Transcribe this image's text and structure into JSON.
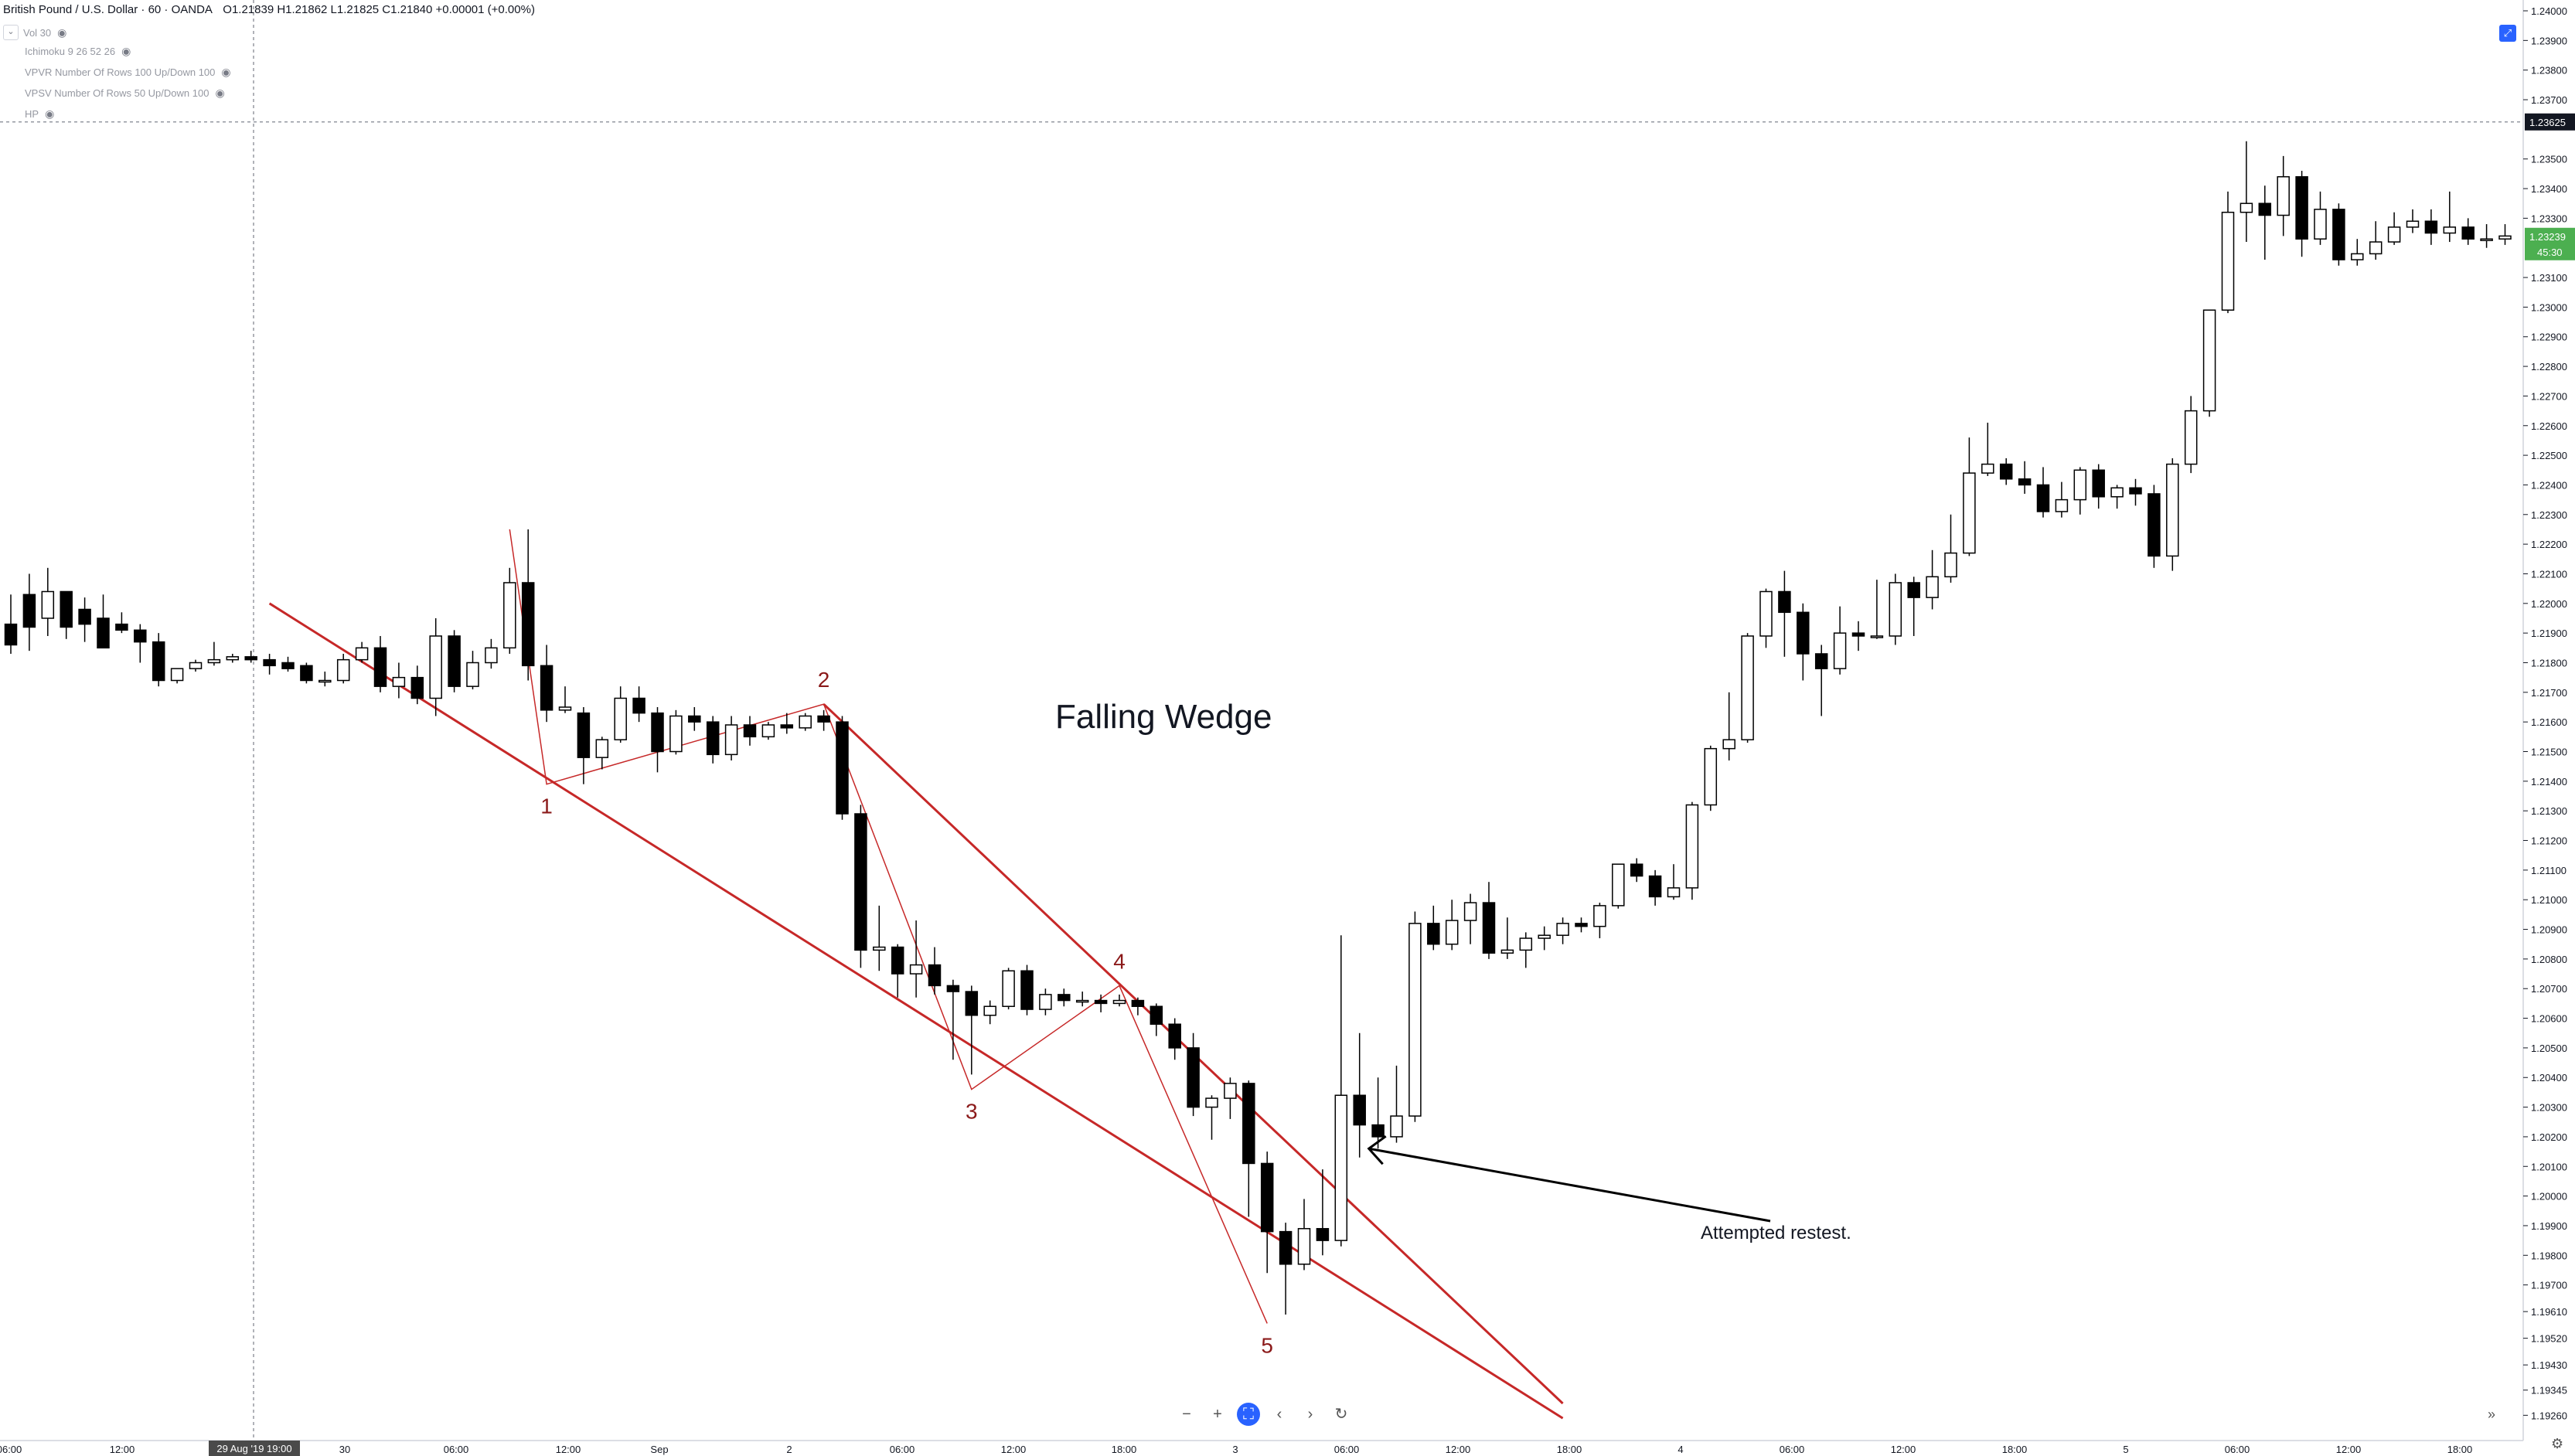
{
  "header": {
    "symbol": "British Pound / U.S. Dollar · 60 · OANDA",
    "ohlc": "O1.21839 H1.21862 L1.21825 C1.21840 +0.00001 (+0.00%)"
  },
  "indicators": [
    {
      "label": "Vol 30"
    },
    {
      "label": "Ichimoku 9 26 52 26"
    },
    {
      "label": "VPVR Number Of Rows 100 Up/Down 100"
    },
    {
      "label": "VPSV Number Of Rows 50 Up/Down 100"
    },
    {
      "label": "HP"
    }
  ],
  "icons": {
    "eye": "eye-icon",
    "zoom_out": "minus-icon",
    "zoom_in": "plus-icon",
    "reset": "fit-icon",
    "scroll_left": "chevron-left-icon",
    "scroll_right": "chevron-right-icon",
    "refresh": "reset-icon",
    "go_latest": "double-chevron-right-icon",
    "settings": "gear-icon"
  },
  "colors": {
    "up_candle": "#ffffff",
    "down_candle": "#000000",
    "wedge_line": "#c62828",
    "pattern_label": "#8b1a1a",
    "price_tag": "#4caf50",
    "crosshair_tag": "#131722",
    "date_tag": "#4a4a4a",
    "axis_text": "#131722"
  },
  "chart_data": {
    "type": "candlestick",
    "title": "Falling Wedge",
    "symbol": "GBP/USD",
    "timeframe": "60",
    "ylim": [
      1.1918,
      1.24
    ],
    "y_ticks": [
      "1.24000",
      "1.23900",
      "1.23800",
      "1.23700",
      "1.23500",
      "1.23400",
      "1.23300",
      "1.23100",
      "1.23000",
      "1.22900",
      "1.22800",
      "1.22700",
      "1.22600",
      "1.22500",
      "1.22400",
      "1.22300",
      "1.22200",
      "1.22100",
      "1.22000",
      "1.21900",
      "1.21800",
      "1.21700",
      "1.21600",
      "1.21500",
      "1.21400",
      "1.21300",
      "1.21200",
      "1.21100",
      "1.21000",
      "1.20900",
      "1.20800",
      "1.20700",
      "1.20600",
      "1.20500",
      "1.20400",
      "1.20300",
      "1.20200",
      "1.20100",
      "1.20000",
      "1.19900",
      "1.19800",
      "1.19700",
      "1.19610",
      "1.19520",
      "1.19430",
      "1.19345",
      "1.19260"
    ],
    "x_ticks": [
      "06:00",
      "12:00",
      "30",
      "06:00",
      "12:00",
      "Sep",
      "2",
      "06:00",
      "12:00",
      "18:00",
      "3",
      "06:00",
      "12:00",
      "18:00",
      "4",
      "06:00",
      "12:00",
      "18:00",
      "5",
      "06:00",
      "12:00",
      "18:00"
    ],
    "crosshair_price": "1.23625",
    "crosshair_time": "29 Aug '19  19:00",
    "last_price": "1.23239",
    "countdown": "45:30",
    "candles": [
      [
        1.2193,
        1.2203,
        1.2186,
        1.2183
      ],
      [
        1.2203,
        1.221,
        1.2192,
        1.2184
      ],
      [
        1.2195,
        1.2212,
        1.2204,
        1.2189
      ],
      [
        1.2204,
        1.2198,
        1.2192,
        1.2188
      ],
      [
        1.2198,
        1.2202,
        1.2193,
        1.2187
      ],
      [
        1.2195,
        1.2203,
        1.2185,
        1.2185
      ],
      [
        1.2193,
        1.2197,
        1.2191,
        1.219
      ],
      [
        1.2191,
        1.2193,
        1.2187,
        1.218
      ],
      [
        1.2187,
        1.219,
        1.2174,
        1.2172
      ],
      [
        1.2174,
        1.2176,
        1.2178,
        1.2173
      ],
      [
        1.2178,
        1.2181,
        1.218,
        1.2177
      ],
      [
        1.218,
        1.2187,
        1.2181,
        1.2179
      ],
      [
        1.2181,
        1.2183,
        1.2182,
        1.218
      ],
      [
        1.2182,
        1.2184,
        1.2181,
        1.218
      ],
      [
        1.2181,
        1.2183,
        1.2179,
        1.2176
      ],
      [
        1.218,
        1.2182,
        1.2178,
        1.2177
      ],
      [
        1.2179,
        1.218,
        1.2174,
        1.2173
      ],
      [
        1.2174,
        1.2177,
        1.2174,
        1.2172
      ],
      [
        1.2174,
        1.2183,
        1.2181,
        1.2173
      ],
      [
        1.2181,
        1.2187,
        1.2185,
        1.218
      ],
      [
        1.2185,
        1.2189,
        1.2172,
        1.217
      ],
      [
        1.2172,
        1.218,
        1.2175,
        1.2168
      ],
      [
        1.2175,
        1.2179,
        1.2168,
        1.2166
      ],
      [
        1.2168,
        1.2195,
        1.2189,
        1.2162
      ],
      [
        1.2189,
        1.2191,
        1.2172,
        1.217
      ],
      [
        1.2172,
        1.2184,
        1.218,
        1.2171
      ],
      [
        1.218,
        1.2188,
        1.2185,
        1.2178
      ],
      [
        1.2185,
        1.2212,
        1.2207,
        1.2183
      ],
      [
        1.2207,
        1.2225,
        1.2179,
        1.2174
      ],
      [
        1.2179,
        1.2186,
        1.2164,
        1.216
      ],
      [
        1.2164,
        1.2172,
        1.2165,
        1.2163
      ],
      [
        1.2163,
        1.2165,
        1.2148,
        1.2139
      ],
      [
        1.2148,
        1.2155,
        1.2154,
        1.2144
      ],
      [
        1.2154,
        1.2172,
        1.2168,
        1.2153
      ],
      [
        1.2168,
        1.2172,
        1.2163,
        1.216
      ],
      [
        1.2163,
        1.2165,
        1.215,
        1.2143
      ],
      [
        1.215,
        1.2164,
        1.2162,
        1.2149
      ],
      [
        1.2162,
        1.2165,
        1.216,
        1.2157
      ],
      [
        1.216,
        1.2162,
        1.2149,
        1.2146
      ],
      [
        1.2149,
        1.2162,
        1.2159,
        1.2147
      ],
      [
        1.2159,
        1.2162,
        1.2155,
        1.2152
      ],
      [
        1.2155,
        1.216,
        1.2159,
        1.2154
      ],
      [
        1.2159,
        1.2163,
        1.2158,
        1.2156
      ],
      [
        1.2158,
        1.2163,
        1.2162,
        1.2157
      ],
      [
        1.2162,
        1.2164,
        1.216,
        1.2157
      ],
      [
        1.216,
        1.2162,
        1.2129,
        1.2127
      ],
      [
        1.2129,
        1.2132,
        1.2083,
        1.2077
      ],
      [
        1.2083,
        1.2098,
        1.2084,
        1.2076
      ],
      [
        1.2084,
        1.2085,
        1.2075,
        1.2067
      ],
      [
        1.2075,
        1.2093,
        1.2078,
        1.2067
      ],
      [
        1.2078,
        1.2084,
        1.2071,
        1.2068
      ],
      [
        1.2071,
        1.2073,
        1.2069,
        1.2046
      ],
      [
        1.2069,
        1.2071,
        1.2061,
        1.2041
      ],
      [
        1.2061,
        1.2066,
        1.2064,
        1.2058
      ],
      [
        1.2064,
        1.2077,
        1.2076,
        1.2063
      ],
      [
        1.2076,
        1.2078,
        1.2063,
        1.2061
      ],
      [
        1.2063,
        1.207,
        1.2068,
        1.2061
      ],
      [
        1.2068,
        1.207,
        1.2066,
        1.2064
      ],
      [
        1.2066,
        1.2069,
        1.2066,
        1.2064
      ],
      [
        1.2066,
        1.2068,
        1.2065,
        1.2062
      ],
      [
        1.2065,
        1.2068,
        1.2066,
        1.2064
      ],
      [
        1.2066,
        1.2067,
        1.2064,
        1.2061
      ],
      [
        1.2064,
        1.2065,
        1.2058,
        1.2054
      ],
      [
        1.2058,
        1.206,
        1.205,
        1.2046
      ],
      [
        1.205,
        1.2055,
        1.203,
        1.2027
      ],
      [
        1.203,
        1.2034,
        1.2033,
        1.2019
      ],
      [
        1.2033,
        1.204,
        1.2038,
        1.2026
      ],
      [
        1.2038,
        1.2039,
        1.2011,
        1.1993
      ],
      [
        1.2011,
        1.2015,
        1.1988,
        1.1974
      ],
      [
        1.1988,
        1.1991,
        1.1977,
        1.196
      ],
      [
        1.1977,
        1.1999,
        1.1989,
        1.1975
      ],
      [
        1.1989,
        1.2009,
        1.1985,
        1.198
      ],
      [
        1.1985,
        1.2088,
        1.2034,
        1.1983
      ],
      [
        1.2034,
        1.2055,
        1.2024,
        1.2013
      ],
      [
        1.2024,
        1.204,
        1.202,
        1.2016
      ],
      [
        1.202,
        1.2044,
        1.2027,
        1.2018
      ],
      [
        1.2027,
        1.2096,
        1.2092,
        1.2025
      ],
      [
        1.2092,
        1.2098,
        1.2085,
        1.2083
      ],
      [
        1.2085,
        1.21,
        1.2093,
        1.2083
      ],
      [
        1.2093,
        1.2102,
        1.2099,
        1.2085
      ],
      [
        1.2099,
        1.2106,
        1.2082,
        1.208
      ],
      [
        1.2082,
        1.2094,
        1.2083,
        1.208
      ],
      [
        1.2083,
        1.2089,
        1.2087,
        1.2077
      ],
      [
        1.2087,
        1.2091,
        1.2088,
        1.2083
      ],
      [
        1.2088,
        1.2094,
        1.2092,
        1.2085
      ],
      [
        1.2092,
        1.2094,
        1.2091,
        1.2089
      ],
      [
        1.2091,
        1.2099,
        1.2098,
        1.2087
      ],
      [
        1.2098,
        1.2112,
        1.2112,
        1.2097
      ],
      [
        1.2112,
        1.2114,
        1.2108,
        1.2106
      ],
      [
        1.2108,
        1.211,
        1.2101,
        1.2098
      ],
      [
        1.2101,
        1.2112,
        1.2104,
        1.21
      ],
      [
        1.2104,
        1.2133,
        1.2132,
        1.21
      ],
      [
        1.2132,
        1.2152,
        1.2151,
        1.213
      ],
      [
        1.2151,
        1.217,
        1.2154,
        1.2147
      ],
      [
        1.2154,
        1.219,
        1.2189,
        1.2153
      ],
      [
        1.2189,
        1.2205,
        1.2204,
        1.2185
      ],
      [
        1.2204,
        1.2211,
        1.2197,
        1.2182
      ],
      [
        1.2197,
        1.22,
        1.2183,
        1.2174
      ],
      [
        1.2183,
        1.2186,
        1.2178,
        1.2162
      ],
      [
        1.2178,
        1.2199,
        1.219,
        1.2176
      ],
      [
        1.219,
        1.2194,
        1.2189,
        1.2184
      ],
      [
        1.2189,
        1.2208,
        1.2189,
        1.2188
      ],
      [
        1.2189,
        1.221,
        1.2207,
        1.2186
      ],
      [
        1.2207,
        1.2209,
        1.2202,
        1.2189
      ],
      [
        1.2202,
        1.2218,
        1.2209,
        1.2198
      ],
      [
        1.2209,
        1.223,
        1.2217,
        1.2207
      ],
      [
        1.2217,
        1.2256,
        1.2244,
        1.2216
      ],
      [
        1.2244,
        1.2261,
        1.2247,
        1.2243
      ],
      [
        1.2247,
        1.2249,
        1.2242,
        1.224
      ],
      [
        1.2242,
        1.2248,
        1.224,
        1.2237
      ],
      [
        1.224,
        1.2246,
        1.2231,
        1.2229
      ],
      [
        1.2231,
        1.2241,
        1.2235,
        1.2229
      ],
      [
        1.2235,
        1.2246,
        1.2245,
        1.223
      ],
      [
        1.2245,
        1.2247,
        1.2236,
        1.2232
      ],
      [
        1.2236,
        1.224,
        1.2239,
        1.2232
      ],
      [
        1.2239,
        1.2242,
        1.2237,
        1.2233
      ],
      [
        1.2237,
        1.224,
        1.2216,
        1.2212
      ],
      [
        1.2216,
        1.2249,
        1.2247,
        1.2211
      ],
      [
        1.2247,
        1.227,
        1.2265,
        1.2244
      ],
      [
        1.2265,
        1.2292,
        1.2299,
        1.2263
      ],
      [
        1.2299,
        1.2339,
        1.2332,
        1.2298
      ],
      [
        1.2332,
        1.2356,
        1.2335,
        1.2322
      ],
      [
        1.2335,
        1.2341,
        1.2331,
        1.2316
      ],
      [
        1.2331,
        1.2351,
        1.2344,
        1.2324
      ],
      [
        1.2344,
        1.2346,
        1.2323,
        1.2317
      ],
      [
        1.2323,
        1.2339,
        1.2333,
        1.2321
      ],
      [
        1.2333,
        1.2335,
        1.2316,
        1.2314
      ],
      [
        1.2316,
        1.2323,
        1.2318,
        1.2314
      ],
      [
        1.2318,
        1.2329,
        1.2322,
        1.2316
      ],
      [
        1.2322,
        1.2332,
        1.2327,
        1.2321
      ],
      [
        1.2327,
        1.2333,
        1.2329,
        1.2325
      ],
      [
        1.2329,
        1.2333,
        1.2325,
        1.2321
      ],
      [
        1.2325,
        1.2339,
        1.2327,
        1.2322
      ],
      [
        1.2327,
        1.233,
        1.2323,
        1.2321
      ],
      [
        1.2323,
        1.2328,
        1.2323,
        1.232
      ],
      [
        1.2323,
        1.2328,
        1.2324,
        1.2321
      ]
    ],
    "annotations": [
      {
        "text": "Falling Wedge",
        "kind": "title"
      },
      {
        "text": "1",
        "kind": "pivot",
        "bar": 29,
        "price": 1.2139
      },
      {
        "text": "2",
        "kind": "pivot",
        "bar": 44,
        "price": 1.2166
      },
      {
        "text": "3",
        "kind": "pivot",
        "bar": 52,
        "price": 1.2036
      },
      {
        "text": "4",
        "kind": "pivot",
        "bar": 60,
        "price": 1.2071
      },
      {
        "text": "5",
        "kind": "pivot",
        "bar": 68,
        "price": 1.1957
      },
      {
        "text": "Attempted restest.",
        "kind": "callout",
        "bar": 73,
        "price": 1.2016
      }
    ],
    "trendlines": [
      {
        "from": [
          14,
          1.22
        ],
        "to": [
          84,
          1.1925
        ]
      },
      {
        "from": [
          44,
          1.2166
        ],
        "to": [
          84,
          1.193
        ]
      }
    ],
    "zigzag": [
      [
        27,
        1.2225
      ],
      [
        29,
        1.2139
      ],
      [
        44,
        1.2166
      ],
      [
        52,
        1.2036
      ],
      [
        60,
        1.2071
      ],
      [
        68,
        1.1957
      ]
    ]
  }
}
